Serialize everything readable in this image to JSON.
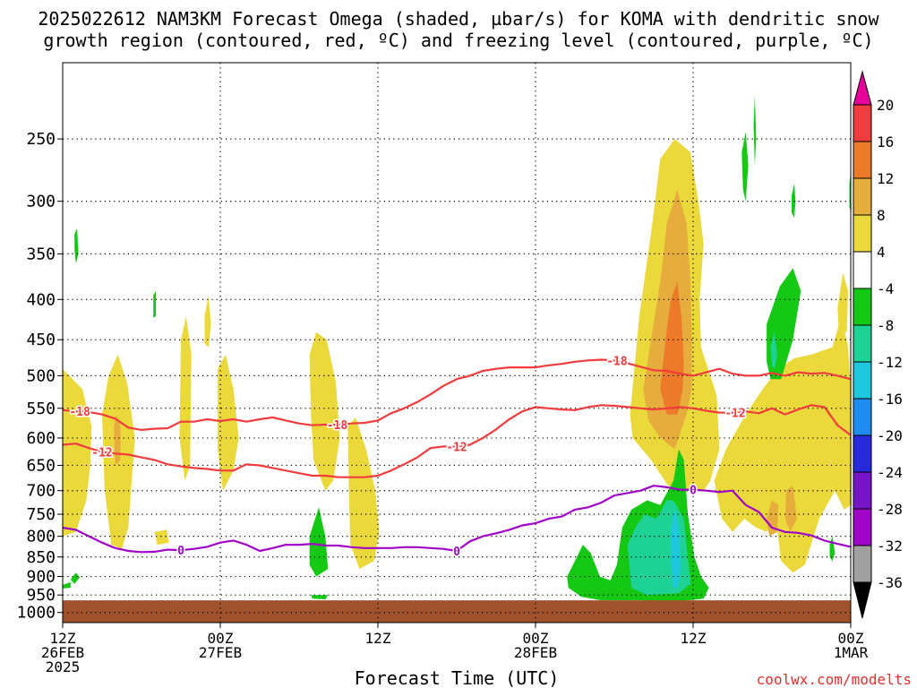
{
  "chart_data": {
    "type": "heatmap",
    "title_line1": "2025022612 NAM3KM Forecast Omega (shaded, µbar/s) for KOMA with dendritic snow",
    "title_line2": "growth region (contoured, red, ºC) and freezing level (contoured, purple, ºC)",
    "xlabel": "Forecast Time (UTC)",
    "credit": "coolwx.com/modelts",
    "x_ticks": [
      {
        "h": 0,
        "l1": "12Z",
        "l2": "26FEB",
        "l3": "2025"
      },
      {
        "h": 12,
        "l1": "00Z",
        "l2": "27FEB",
        "l3": ""
      },
      {
        "h": 24,
        "l1": "12Z",
        "l2": "",
        "l3": ""
      },
      {
        "h": 36,
        "l1": "00Z",
        "l2": "28FEB",
        "l3": ""
      },
      {
        "h": 48,
        "l1": "12Z",
        "l2": "",
        "l3": ""
      },
      {
        "h": 60,
        "l1": "00Z",
        "l2": "1MAR",
        "l3": ""
      }
    ],
    "xlim_hours": [
      0,
      60
    ],
    "y_ticks": [
      250,
      300,
      350,
      400,
      450,
      500,
      550,
      600,
      650,
      700,
      750,
      800,
      850,
      900,
      950,
      1000
    ],
    "ylim_hpa": [
      200,
      1030
    ],
    "y_scale": "log",
    "ground_hpa": 965,
    "grid": true,
    "colorbar": {
      "labels": [
        "20",
        "16",
        "12",
        "8",
        "4",
        "-4",
        "-8",
        "-12",
        "-16",
        "-20",
        "-24",
        "-28",
        "-32",
        "-36"
      ],
      "colors": [
        "#e60099",
        "#f03c3c",
        "#ec7a28",
        "#e6ac3c",
        "#ebd93c",
        "#ffffff",
        "#14c814",
        "#1ed296",
        "#1ec8dc",
        "#1e8cf0",
        "#2828dc",
        "#7814c8",
        "#a005c8",
        "#a0a0a0",
        "#000000"
      ]
    },
    "colors": {
      "c4": "#ebd93c",
      "c8": "#e6ac3c",
      "c12": "#ec7a28",
      "cn4": "#14c814",
      "cn8": "#1ed296",
      "cn12": "#1ec8dc",
      "ground": "#a0522d",
      "dgz": "#f03c3c",
      "freeze": "#a005c8"
    },
    "series": [
      {
        "name": "-18",
        "values": [
          [
            0,
            553
          ],
          [
            1,
            555
          ],
          [
            2,
            556
          ],
          [
            3,
            560
          ],
          [
            4,
            567
          ],
          [
            5,
            582
          ],
          [
            6,
            586
          ],
          [
            7,
            584
          ],
          [
            8,
            583
          ],
          [
            9,
            572
          ],
          [
            10,
            572
          ],
          [
            11,
            568
          ],
          [
            12,
            571
          ],
          [
            13,
            568
          ],
          [
            14,
            572
          ],
          [
            15,
            568
          ],
          [
            16,
            565
          ],
          [
            17,
            570
          ],
          [
            18,
            575
          ],
          [
            19,
            578
          ],
          [
            20,
            577
          ],
          [
            21,
            577
          ],
          [
            22,
            575
          ],
          [
            23,
            574
          ],
          [
            24,
            570
          ],
          [
            25,
            558
          ],
          [
            26,
            550
          ],
          [
            27,
            540
          ],
          [
            28,
            528
          ],
          [
            29,
            515
          ],
          [
            30,
            505
          ],
          [
            31,
            500
          ],
          [
            32,
            493
          ],
          [
            33,
            490
          ],
          [
            34,
            488
          ],
          [
            35,
            488
          ],
          [
            36,
            488
          ],
          [
            37,
            485
          ],
          [
            38,
            483
          ],
          [
            39,
            480
          ],
          [
            40,
            478
          ],
          [
            41,
            477
          ],
          [
            42,
            478
          ],
          [
            43,
            482
          ],
          [
            44,
            487
          ],
          [
            45,
            492
          ],
          [
            46,
            493
          ],
          [
            47,
            497
          ],
          [
            48,
            500
          ],
          [
            49,
            495
          ],
          [
            50,
            490
          ],
          [
            51,
            497
          ],
          [
            52,
            500
          ],
          [
            53,
            500
          ],
          [
            54,
            496
          ],
          [
            55,
            500
          ],
          [
            56,
            495
          ],
          [
            57,
            497
          ],
          [
            58,
            496
          ],
          [
            59,
            500
          ],
          [
            60,
            505
          ]
        ]
      },
      {
        "name": "-12",
        "values": [
          [
            0,
            612
          ],
          [
            1,
            610
          ],
          [
            2,
            618
          ],
          [
            3,
            625
          ],
          [
            4,
            628
          ],
          [
            5,
            630
          ],
          [
            6,
            635
          ],
          [
            7,
            640
          ],
          [
            8,
            648
          ],
          [
            9,
            652
          ],
          [
            10,
            655
          ],
          [
            11,
            657
          ],
          [
            12,
            660
          ],
          [
            13,
            660
          ],
          [
            14,
            648
          ],
          [
            15,
            650
          ],
          [
            16,
            655
          ],
          [
            17,
            660
          ],
          [
            18,
            665
          ],
          [
            19,
            670
          ],
          [
            20,
            670
          ],
          [
            21,
            673
          ],
          [
            22,
            673
          ],
          [
            23,
            673
          ],
          [
            24,
            670
          ],
          [
            25,
            660
          ],
          [
            26,
            648
          ],
          [
            27,
            635
          ],
          [
            28,
            618
          ],
          [
            29,
            615
          ],
          [
            30,
            615
          ],
          [
            31,
            612
          ],
          [
            32,
            600
          ],
          [
            33,
            585
          ],
          [
            34,
            568
          ],
          [
            35,
            555
          ],
          [
            36,
            548
          ],
          [
            37,
            550
          ],
          [
            38,
            552
          ],
          [
            39,
            553
          ],
          [
            40,
            548
          ],
          [
            41,
            545
          ],
          [
            42,
            546
          ],
          [
            43,
            548
          ],
          [
            44,
            550
          ],
          [
            45,
            552
          ],
          [
            46,
            550
          ],
          [
            47,
            548
          ],
          [
            48,
            550
          ],
          [
            49,
            554
          ],
          [
            50,
            557
          ],
          [
            51,
            557
          ],
          [
            52,
            555
          ],
          [
            53,
            558
          ],
          [
            54,
            550
          ],
          [
            55,
            560
          ],
          [
            56,
            552
          ],
          [
            57,
            545
          ],
          [
            58,
            548
          ],
          [
            59,
            578
          ],
          [
            60,
            595
          ]
        ]
      },
      {
        "name": "0",
        "values": [
          [
            0,
            780
          ],
          [
            1,
            785
          ],
          [
            2,
            800
          ],
          [
            3,
            815
          ],
          [
            4,
            828
          ],
          [
            5,
            835
          ],
          [
            6,
            838
          ],
          [
            7,
            837
          ],
          [
            8,
            832
          ],
          [
            9,
            833
          ],
          [
            10,
            830
          ],
          [
            11,
            825
          ],
          [
            12,
            815
          ],
          [
            13,
            810
          ],
          [
            14,
            820
          ],
          [
            15,
            835
          ],
          [
            16,
            828
          ],
          [
            17,
            820
          ],
          [
            18,
            820
          ],
          [
            19,
            818
          ],
          [
            20,
            822
          ],
          [
            21,
            822
          ],
          [
            22,
            826
          ],
          [
            23,
            828
          ],
          [
            24,
            828
          ],
          [
            25,
            828
          ],
          [
            26,
            826
          ],
          [
            27,
            826
          ],
          [
            28,
            828
          ],
          [
            29,
            830
          ],
          [
            30,
            835
          ],
          [
            31,
            812
          ],
          [
            32,
            800
          ],
          [
            33,
            793
          ],
          [
            34,
            785
          ],
          [
            35,
            775
          ],
          [
            36,
            770
          ],
          [
            37,
            760
          ],
          [
            38,
            755
          ],
          [
            39,
            740
          ],
          [
            40,
            735
          ],
          [
            41,
            725
          ],
          [
            42,
            710
          ],
          [
            43,
            705
          ],
          [
            44,
            700
          ],
          [
            45,
            690
          ],
          [
            46,
            693
          ],
          [
            47,
            698
          ],
          [
            48,
            698
          ],
          [
            49,
            700
          ],
          [
            50,
            703
          ],
          [
            51,
            700
          ],
          [
            52,
            730
          ],
          [
            53,
            745
          ],
          [
            54,
            780
          ],
          [
            55,
            790
          ],
          [
            56,
            792
          ],
          [
            57,
            798
          ],
          [
            58,
            810
          ],
          [
            59,
            818
          ],
          [
            60,
            825
          ]
        ]
      }
    ]
  }
}
